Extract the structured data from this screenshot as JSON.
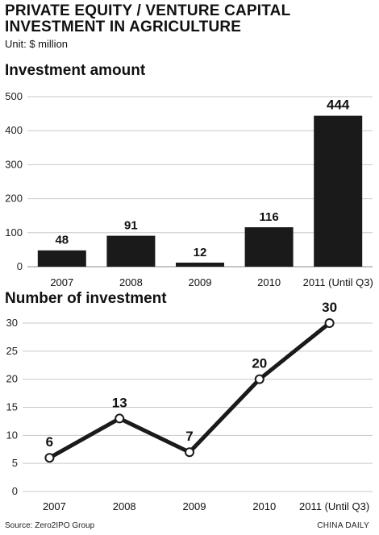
{
  "header": {
    "title_line1": "PRIVATE EQUITY / VENTURE CAPITAL",
    "title_line2": "INVESTMENT IN AGRICULTURE",
    "unit": "Unit: $ million"
  },
  "footer": {
    "source": "Source: Zero2IPO Group",
    "credit": "CHINA DAILY"
  },
  "colors": {
    "ink": "#1a1a1a",
    "grid": "#c8c8c8",
    "marker_fill": "#ffffff"
  },
  "chart_data": [
    {
      "type": "bar",
      "title": "Investment amount",
      "categories": [
        "2007",
        "2008",
        "2009",
        "2010",
        "2011 (Until Q3)"
      ],
      "values": [
        48,
        91,
        12,
        116,
        444
      ],
      "data_labels": [
        "48",
        "91",
        "12",
        "116",
        "444"
      ],
      "ylim": [
        0,
        500
      ],
      "yticks": [
        0,
        100,
        200,
        300,
        400,
        500
      ],
      "grid": true
    },
    {
      "type": "line",
      "title": "Number of investment",
      "categories": [
        "2007",
        "2008",
        "2009",
        "2010",
        "2011 (Until Q3)"
      ],
      "values": [
        6,
        13,
        7,
        20,
        30
      ],
      "data_labels": [
        "6",
        "13",
        "7",
        "20",
        "30"
      ],
      "ylim": [
        0,
        30
      ],
      "yticks": [
        0,
        5,
        10,
        15,
        20,
        25,
        30
      ],
      "grid": true,
      "markers": "open-circle"
    }
  ]
}
